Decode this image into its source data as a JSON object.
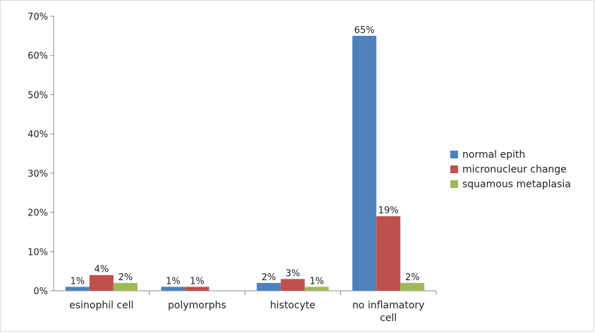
{
  "chart_data": {
    "type": "bar",
    "categories": [
      "esinophil cell",
      "polymorphs",
      "histocyte",
      "no inflamatory cell"
    ],
    "series": [
      {
        "name": "normal epith",
        "color": "#4F81BD",
        "values": [
          1,
          1,
          2,
          65
        ],
        "labels": [
          "1%",
          "1%",
          "2%",
          "65%"
        ]
      },
      {
        "name": "micronucleur change",
        "color": "#C0504D",
        "values": [
          4,
          1,
          3,
          19
        ],
        "labels": [
          "4%",
          "1%",
          "3%",
          "19%"
        ]
      },
      {
        "name": "squamous metaplasia",
        "color": "#9BBB59",
        "values": [
          2,
          null,
          1,
          2
        ],
        "labels": [
          "2%",
          "",
          "1%",
          "2%"
        ]
      }
    ],
    "ylim": [
      0,
      70
    ],
    "yticks": [
      "0%",
      "10%",
      "20%",
      "30%",
      "40%",
      "50%",
      "60%",
      "70%"
    ],
    "legend_position": "right",
    "grid": false
  }
}
